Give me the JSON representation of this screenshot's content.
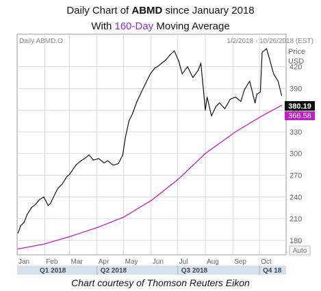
{
  "title": {
    "line1_prefix": "Daily Chart of ",
    "line1_ticker": "ABMD",
    "line1_suffix": " since January 2018",
    "line2_prefix": "With ",
    "line2_highlight": "160-Day",
    "line2_suffix": " Moving Average"
  },
  "header": {
    "symbol": "Daily ABMD.O",
    "date_range": "1/2/2018 - 10/26/2018 (EST)",
    "price_label": "Price",
    "currency_label": "USD"
  },
  "auto_label": "Auto",
  "footer": "Chart courtesy of Thomson Reuters Eikon",
  "colors": {
    "price_line": "#111111",
    "ma_line": "#c01cc8",
    "ma_badge": "#c01cc8",
    "grid": "#d9d9d9",
    "quarter_bar": "#d5e0ee"
  },
  "chart_data": {
    "type": "line",
    "title": "Daily Chart of ABMD since January 2018",
    "subtitle": "With 160-Day Moving Average",
    "ylabel": "Price USD",
    "ylim": [
      160,
      465
    ],
    "y_ticks": [
      180,
      210,
      240,
      270,
      300,
      330,
      360,
      390,
      420
    ],
    "x_range": [
      "2018-01-02",
      "2018-10-26"
    ],
    "month_labels": [
      "Jan",
      "Feb",
      "Mar",
      "Apr",
      "May",
      "Jun",
      "Jul",
      "Aug",
      "Sep",
      "Oct"
    ],
    "month_dates": [
      "2018-01-01",
      "2018-02-01",
      "2018-03-01",
      "2018-04-01",
      "2018-05-01",
      "2018-06-01",
      "2018-07-01",
      "2018-08-01",
      "2018-09-01",
      "2018-10-01"
    ],
    "quarter_labels": [
      "Q1 2018",
      "Q2 2018",
      "Q3 2018",
      "Q4 18"
    ],
    "quarter_dates": [
      "2018-01-01",
      "2018-04-01",
      "2018-07-01",
      "2018-10-01"
    ],
    "grid": true,
    "last_price_label": "380.19",
    "last_ma_label": "366.58",
    "series": [
      {
        "name": "Price",
        "x": [
          "2018-01-02",
          "2018-01-05",
          "2018-01-09",
          "2018-01-12",
          "2018-01-17",
          "2018-01-22",
          "2018-01-26",
          "2018-01-31",
          "2018-02-05",
          "2018-02-08",
          "2018-02-13",
          "2018-02-16",
          "2018-02-21",
          "2018-02-26",
          "2018-03-01",
          "2018-03-06",
          "2018-03-09",
          "2018-03-14",
          "2018-03-19",
          "2018-03-23",
          "2018-03-28",
          "2018-04-03",
          "2018-04-09",
          "2018-04-13",
          "2018-04-19",
          "2018-04-25",
          "2018-04-30",
          "2018-05-03",
          "2018-05-07",
          "2018-05-11",
          "2018-05-16",
          "2018-05-21",
          "2018-05-25",
          "2018-05-31",
          "2018-06-05",
          "2018-06-08",
          "2018-06-13",
          "2018-06-18",
          "2018-06-22",
          "2018-06-27",
          "2018-07-02",
          "2018-07-06",
          "2018-07-12",
          "2018-07-18",
          "2018-07-24",
          "2018-07-27",
          "2018-08-01",
          "2018-08-03",
          "2018-08-08",
          "2018-08-13",
          "2018-08-17",
          "2018-08-23",
          "2018-08-29",
          "2018-09-04",
          "2018-09-10",
          "2018-09-14",
          "2018-09-20",
          "2018-09-26",
          "2018-09-28",
          "2018-10-02",
          "2018-10-04",
          "2018-10-09",
          "2018-10-12",
          "2018-10-17",
          "2018-10-22",
          "2018-10-26"
        ],
        "y": [
          190,
          200,
          205,
          215,
          225,
          230,
          236,
          240,
          228,
          232,
          245,
          252,
          258,
          268,
          271,
          280,
          285,
          290,
          294,
          298,
          291,
          293,
          287,
          290,
          284,
          286,
          298,
          322,
          345,
          355,
          372,
          385,
          395,
          410,
          418,
          420,
          425,
          430,
          436,
          442,
          428,
          410,
          420,
          405,
          415,
          425,
          360,
          378,
          352,
          365,
          370,
          362,
          375,
          378,
          372,
          388,
          400,
          370,
          382,
          385,
          440,
          445,
          432,
          410,
          400,
          380
        ]
      },
      {
        "name": "160-Day Moving Average",
        "x": [
          "2018-01-02",
          "2018-02-01",
          "2018-03-01",
          "2018-04-02",
          "2018-05-01",
          "2018-06-01",
          "2018-07-02",
          "2018-08-01",
          "2018-09-04",
          "2018-10-01",
          "2018-10-26"
        ],
        "y": [
          168,
          175,
          185,
          198,
          212,
          235,
          265,
          300,
          330,
          350,
          366.58
        ]
      }
    ]
  }
}
